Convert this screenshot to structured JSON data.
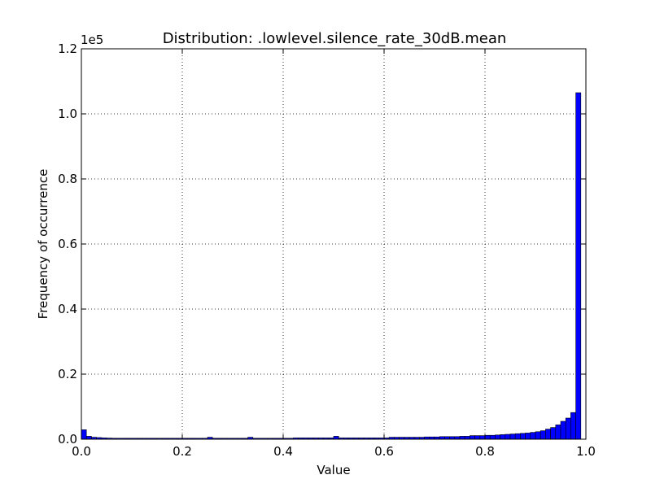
{
  "chart_data": {
    "type": "bar",
    "title": "Distribution: .lowlevel.silence_rate_30dB.mean",
    "xlabel": "Value",
    "ylabel": "Frequency of occurrence",
    "xlim": [
      0.0,
      1.0
    ],
    "ylim": [
      0,
      120000
    ],
    "x_ticks": [
      "0.0",
      "0.2",
      "0.4",
      "0.6",
      "0.8",
      "1.0"
    ],
    "y_ticks": [
      "0.0",
      "0.2",
      "0.4",
      "0.6",
      "0.8",
      "1.0",
      "1.2"
    ],
    "y_offset_label": "1e5",
    "grid": true,
    "bar_color": "#0000ff",
    "bin_width": 0.01,
    "values": [
      2900,
      900,
      600,
      500,
      400,
      350,
      300,
      300,
      300,
      300,
      300,
      300,
      300,
      300,
      300,
      300,
      300,
      300,
      300,
      300,
      300,
      300,
      300,
      300,
      300,
      600,
      300,
      300,
      300,
      300,
      300,
      300,
      300,
      600,
      300,
      300,
      300,
      300,
      300,
      300,
      300,
      300,
      400,
      400,
      400,
      400,
      400,
      400,
      400,
      400,
      900,
      400,
      400,
      400,
      400,
      400,
      400,
      400,
      400,
      400,
      400,
      600,
      600,
      600,
      600,
      600,
      600,
      600,
      700,
      700,
      700,
      800,
      800,
      800,
      800,
      900,
      900,
      1100,
      1100,
      1100,
      1200,
      1200,
      1300,
      1400,
      1500,
      1600,
      1700,
      1800,
      1900,
      2100,
      2300,
      2600,
      3100,
      3600,
      4400,
      5500,
      6500,
      8200,
      106500
    ]
  }
}
